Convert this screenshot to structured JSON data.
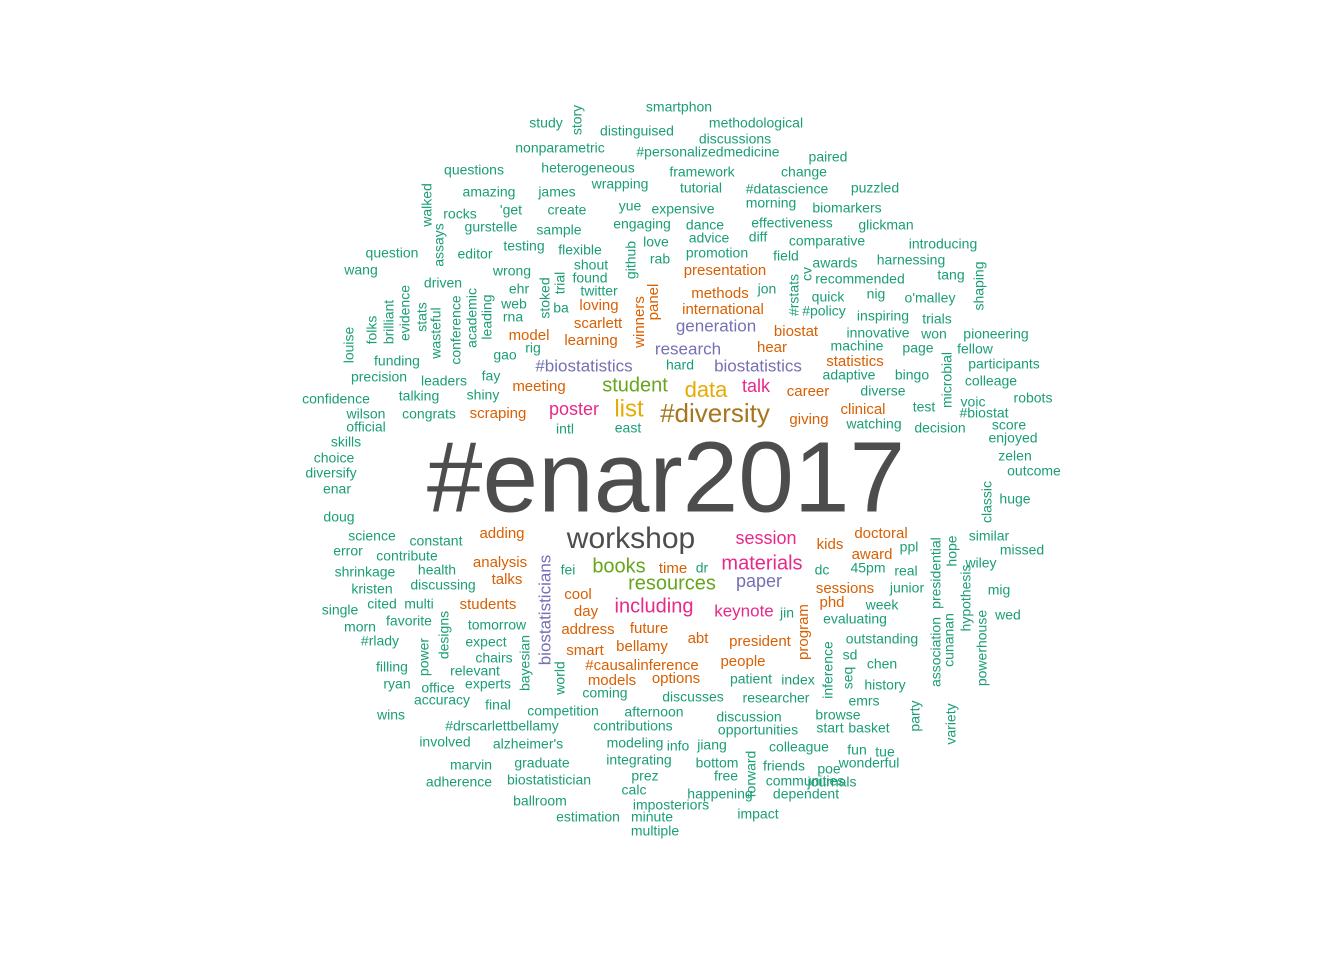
{
  "colors": {
    "gray": "#4d4d4d",
    "green": "#1b9e77",
    "orange": "#d95f02",
    "purple": "#7570b3",
    "pink": "#e7298a",
    "lime": "#66a61e",
    "gold": "#e6ab02",
    "brown": "#a6761d"
  },
  "words": [
    {
      "text": "#enar2017",
      "c": "gray"
    },
    {
      "text": "workshop",
      "c": "gray"
    },
    {
      "text": "#diversity",
      "c": "brown"
    },
    {
      "text": "list",
      "c": "gold"
    },
    {
      "text": "data",
      "c": "gold"
    },
    {
      "text": "student",
      "c": "lime"
    },
    {
      "text": "books",
      "c": "lime"
    },
    {
      "text": "resources",
      "c": "lime"
    },
    {
      "text": "materials",
      "c": "pink"
    },
    {
      "text": "session",
      "c": "pink"
    },
    {
      "text": "including",
      "c": "pink"
    },
    {
      "text": "talk",
      "c": "pink"
    },
    {
      "text": "poster",
      "c": "pink"
    },
    {
      "text": "keynote",
      "c": "pink"
    },
    {
      "text": "paper",
      "c": "purple"
    },
    {
      "text": "research",
      "c": "purple"
    },
    {
      "text": "#biostatistics",
      "c": "purple"
    },
    {
      "text": "biostatistics",
      "c": "purple"
    },
    {
      "text": "generation",
      "c": "purple"
    },
    {
      "text": "biostatisticians",
      "c": "purple"
    },
    {
      "text": "presentation",
      "c": "orange"
    },
    {
      "text": "methods",
      "c": "orange"
    },
    {
      "text": "international",
      "c": "orange"
    },
    {
      "text": "loving",
      "c": "orange"
    },
    {
      "text": "scarlett",
      "c": "orange"
    },
    {
      "text": "learning",
      "c": "orange"
    },
    {
      "text": "model",
      "c": "orange"
    },
    {
      "text": "meeting",
      "c": "orange"
    },
    {
      "text": "scraping",
      "c": "orange"
    },
    {
      "text": "hear",
      "c": "orange"
    },
    {
      "text": "biostat",
      "c": "orange"
    },
    {
      "text": "statistics",
      "c": "orange"
    },
    {
      "text": "career",
      "c": "orange"
    },
    {
      "text": "clinical",
      "c": "orange"
    },
    {
      "text": "giving",
      "c": "orange"
    },
    {
      "text": "winners",
      "c": "orange"
    },
    {
      "text": "panel",
      "c": "orange"
    },
    {
      "text": "adding",
      "c": "orange"
    },
    {
      "text": "analysis",
      "c": "orange"
    },
    {
      "text": "talks",
      "c": "orange"
    },
    {
      "text": "students",
      "c": "orange"
    },
    {
      "text": "cool",
      "c": "orange"
    },
    {
      "text": "day",
      "c": "orange"
    },
    {
      "text": "address",
      "c": "orange"
    },
    {
      "text": "future",
      "c": "orange"
    },
    {
      "text": "smart",
      "c": "orange"
    },
    {
      "text": "bellamy",
      "c": "orange"
    },
    {
      "text": "#causalinference",
      "c": "orange"
    },
    {
      "text": "models",
      "c": "orange"
    },
    {
      "text": "options",
      "c": "orange"
    },
    {
      "text": "time",
      "c": "orange"
    },
    {
      "text": "abt",
      "c": "orange"
    },
    {
      "text": "president",
      "c": "orange"
    },
    {
      "text": "people",
      "c": "orange"
    },
    {
      "text": "program",
      "c": "orange"
    },
    {
      "text": "doctoral",
      "c": "orange"
    },
    {
      "text": "award",
      "c": "orange"
    },
    {
      "text": "kids",
      "c": "orange"
    },
    {
      "text": "sessions",
      "c": "orange"
    },
    {
      "text": "phd",
      "c": "orange"
    },
    {
      "text": "smartphon",
      "c": "green"
    },
    {
      "text": "story",
      "c": "green"
    },
    {
      "text": "study",
      "c": "green"
    },
    {
      "text": "methodological",
      "c": "green"
    },
    {
      "text": "distinguised",
      "c": "green"
    },
    {
      "text": "discussions",
      "c": "green"
    },
    {
      "text": "nonparametric",
      "c": "green"
    },
    {
      "text": "#personalizedmedicine",
      "c": "green"
    },
    {
      "text": "paired",
      "c": "green"
    },
    {
      "text": "questions",
      "c": "green"
    },
    {
      "text": "heterogeneous",
      "c": "green"
    },
    {
      "text": "framework",
      "c": "green"
    },
    {
      "text": "change",
      "c": "green"
    },
    {
      "text": "amazing",
      "c": "green"
    },
    {
      "text": "james",
      "c": "green"
    },
    {
      "text": "wrapping",
      "c": "green"
    },
    {
      "text": "tutorial",
      "c": "green"
    },
    {
      "text": "#datascience",
      "c": "green"
    },
    {
      "text": "puzzled",
      "c": "green"
    },
    {
      "text": "walked",
      "c": "green"
    },
    {
      "text": "rocks",
      "c": "green"
    },
    {
      "text": "'get",
      "c": "green"
    },
    {
      "text": "create",
      "c": "green"
    },
    {
      "text": "yue",
      "c": "green"
    },
    {
      "text": "expensive",
      "c": "green"
    },
    {
      "text": "morning",
      "c": "green"
    },
    {
      "text": "biomarkers",
      "c": "green"
    },
    {
      "text": "gurstelle",
      "c": "green"
    },
    {
      "text": "sample",
      "c": "green"
    },
    {
      "text": "engaging",
      "c": "green"
    },
    {
      "text": "dance",
      "c": "green"
    },
    {
      "text": "effectiveness",
      "c": "green"
    },
    {
      "text": "glickman",
      "c": "green"
    },
    {
      "text": "assays",
      "c": "green"
    },
    {
      "text": "question",
      "c": "green"
    },
    {
      "text": "editor",
      "c": "green"
    },
    {
      "text": "testing",
      "c": "green"
    },
    {
      "text": "flexible",
      "c": "green"
    },
    {
      "text": "love",
      "c": "green"
    },
    {
      "text": "advice",
      "c": "green"
    },
    {
      "text": "diff",
      "c": "green"
    },
    {
      "text": "comparative",
      "c": "green"
    },
    {
      "text": "introducing",
      "c": "green"
    },
    {
      "text": "wang",
      "c": "green"
    },
    {
      "text": "github",
      "c": "green"
    },
    {
      "text": "promotion",
      "c": "green"
    },
    {
      "text": "rab",
      "c": "green"
    },
    {
      "text": "field",
      "c": "green"
    },
    {
      "text": "awards",
      "c": "green"
    },
    {
      "text": "harnessing",
      "c": "green"
    },
    {
      "text": "tang",
      "c": "green"
    },
    {
      "text": "shout",
      "c": "green"
    },
    {
      "text": "wrong",
      "c": "green"
    },
    {
      "text": "driven",
      "c": "green"
    },
    {
      "text": "found",
      "c": "green"
    },
    {
      "text": "cv",
      "c": "green"
    },
    {
      "text": "recommended",
      "c": "green"
    },
    {
      "text": "shaping",
      "c": "green"
    },
    {
      "text": "evidence",
      "c": "green"
    },
    {
      "text": "ehr",
      "c": "green"
    },
    {
      "text": "trial",
      "c": "green"
    },
    {
      "text": "twitter",
      "c": "green"
    },
    {
      "text": "jon",
      "c": "green"
    },
    {
      "text": "#rstats",
      "c": "green"
    },
    {
      "text": "quick",
      "c": "green"
    },
    {
      "text": "nig",
      "c": "green"
    },
    {
      "text": "o'malley",
      "c": "green"
    },
    {
      "text": "brilliant",
      "c": "green"
    },
    {
      "text": "academic",
      "c": "green"
    },
    {
      "text": "web",
      "c": "green"
    },
    {
      "text": "stoked",
      "c": "green"
    },
    {
      "text": "ba",
      "c": "green"
    },
    {
      "text": "#policy",
      "c": "green"
    },
    {
      "text": "inspiring",
      "c": "green"
    },
    {
      "text": "trials",
      "c": "green"
    },
    {
      "text": "stats",
      "c": "green"
    },
    {
      "text": "wasteful",
      "c": "green"
    },
    {
      "text": "leading",
      "c": "green"
    },
    {
      "text": "rna",
      "c": "green"
    },
    {
      "text": "innovative",
      "c": "green"
    },
    {
      "text": "won",
      "c": "green"
    },
    {
      "text": "pioneering",
      "c": "green"
    },
    {
      "text": "folks",
      "c": "green"
    },
    {
      "text": "conference",
      "c": "green"
    },
    {
      "text": "louise",
      "c": "green"
    },
    {
      "text": "rig",
      "c": "green"
    },
    {
      "text": "machine",
      "c": "green"
    },
    {
      "text": "page",
      "c": "green"
    },
    {
      "text": "fellow",
      "c": "green"
    },
    {
      "text": "funding",
      "c": "green"
    },
    {
      "text": "gao",
      "c": "green"
    },
    {
      "text": "hard",
      "c": "green"
    },
    {
      "text": "participants",
      "c": "green"
    },
    {
      "text": "precision",
      "c": "green"
    },
    {
      "text": "leaders",
      "c": "green"
    },
    {
      "text": "fay",
      "c": "green"
    },
    {
      "text": "adaptive",
      "c": "green"
    },
    {
      "text": "bingo",
      "c": "green"
    },
    {
      "text": "colleage",
      "c": "green"
    },
    {
      "text": "microbial",
      "c": "green"
    },
    {
      "text": "talking",
      "c": "green"
    },
    {
      "text": "shiny",
      "c": "green"
    },
    {
      "text": "diverse",
      "c": "green"
    },
    {
      "text": "robots",
      "c": "green"
    },
    {
      "text": "confidence",
      "c": "green"
    },
    {
      "text": "test",
      "c": "green"
    },
    {
      "text": "voic",
      "c": "green"
    },
    {
      "text": "wilson",
      "c": "green"
    },
    {
      "text": "congrats",
      "c": "green"
    },
    {
      "text": "#biostat",
      "c": "green"
    },
    {
      "text": "official",
      "c": "green"
    },
    {
      "text": "intl",
      "c": "green"
    },
    {
      "text": "east",
      "c": "green"
    },
    {
      "text": "watching",
      "c": "green"
    },
    {
      "text": "decision",
      "c": "green"
    },
    {
      "text": "score",
      "c": "green"
    },
    {
      "text": "skills",
      "c": "green"
    },
    {
      "text": "enjoyed",
      "c": "green"
    },
    {
      "text": "choice",
      "c": "green"
    },
    {
      "text": "zelen",
      "c": "green"
    },
    {
      "text": "diversify",
      "c": "green"
    },
    {
      "text": "outcome",
      "c": "green"
    },
    {
      "text": "enar",
      "c": "green"
    },
    {
      "text": "classic",
      "c": "green"
    },
    {
      "text": "huge",
      "c": "green"
    },
    {
      "text": "doug",
      "c": "green"
    },
    {
      "text": "science",
      "c": "green"
    },
    {
      "text": "constant",
      "c": "green"
    },
    {
      "text": "similar",
      "c": "green"
    },
    {
      "text": "presidential",
      "c": "green"
    },
    {
      "text": "error",
      "c": "green"
    },
    {
      "text": "contribute",
      "c": "green"
    },
    {
      "text": "ppl",
      "c": "green"
    },
    {
      "text": "hope",
      "c": "green"
    },
    {
      "text": "missed",
      "c": "green"
    },
    {
      "text": "shrinkage",
      "c": "green"
    },
    {
      "text": "health",
      "c": "green"
    },
    {
      "text": "fei",
      "c": "green"
    },
    {
      "text": "dr",
      "c": "green"
    },
    {
      "text": "dc",
      "c": "green"
    },
    {
      "text": "45pm",
      "c": "green"
    },
    {
      "text": "real",
      "c": "green"
    },
    {
      "text": "wiley",
      "c": "green"
    },
    {
      "text": "kristen",
      "c": "green"
    },
    {
      "text": "discussing",
      "c": "green"
    },
    {
      "text": "junior",
      "c": "green"
    },
    {
      "text": "mig",
      "c": "green"
    },
    {
      "text": "hypothesis",
      "c": "green"
    },
    {
      "text": "single",
      "c": "green"
    },
    {
      "text": "cited",
      "c": "green"
    },
    {
      "text": "multi",
      "c": "green"
    },
    {
      "text": "week",
      "c": "green"
    },
    {
      "text": "favorite",
      "c": "green"
    },
    {
      "text": "jin",
      "c": "green"
    },
    {
      "text": "evaluating",
      "c": "green"
    },
    {
      "text": "wed",
      "c": "green"
    },
    {
      "text": "powerhouse",
      "c": "green"
    },
    {
      "text": "morn",
      "c": "green"
    },
    {
      "text": "tomorrow",
      "c": "green"
    },
    {
      "text": "cunanan",
      "c": "green"
    },
    {
      "text": "#rlady",
      "c": "green"
    },
    {
      "text": "power",
      "c": "green"
    },
    {
      "text": "designs",
      "c": "green"
    },
    {
      "text": "expect",
      "c": "green"
    },
    {
      "text": "outstanding",
      "c": "green"
    },
    {
      "text": "association",
      "c": "green"
    },
    {
      "text": "bayesian",
      "c": "green"
    },
    {
      "text": "chairs",
      "c": "green"
    },
    {
      "text": "sd",
      "c": "green"
    },
    {
      "text": "filling",
      "c": "green"
    },
    {
      "text": "relevant",
      "c": "green"
    },
    {
      "text": "inference",
      "c": "green"
    },
    {
      "text": "chen",
      "c": "green"
    },
    {
      "text": "seq",
      "c": "green"
    },
    {
      "text": "ryan",
      "c": "green"
    },
    {
      "text": "office",
      "c": "green"
    },
    {
      "text": "experts",
      "c": "green"
    },
    {
      "text": "world",
      "c": "green"
    },
    {
      "text": "patient",
      "c": "green"
    },
    {
      "text": "index",
      "c": "green"
    },
    {
      "text": "history",
      "c": "green"
    },
    {
      "text": "accuracy",
      "c": "green"
    },
    {
      "text": "coming",
      "c": "green"
    },
    {
      "text": "discusses",
      "c": "green"
    },
    {
      "text": "researcher",
      "c": "green"
    },
    {
      "text": "party",
      "c": "green"
    },
    {
      "text": "emrs",
      "c": "green"
    },
    {
      "text": "wins",
      "c": "green"
    },
    {
      "text": "final",
      "c": "green"
    },
    {
      "text": "competition",
      "c": "green"
    },
    {
      "text": "afternoon",
      "c": "green"
    },
    {
      "text": "discussion",
      "c": "green"
    },
    {
      "text": "browse",
      "c": "green"
    },
    {
      "text": "variety",
      "c": "green"
    },
    {
      "text": "#drscarlettbellamy",
      "c": "green"
    },
    {
      "text": "contributions",
      "c": "green"
    },
    {
      "text": "opportunities",
      "c": "green"
    },
    {
      "text": "start",
      "c": "green"
    },
    {
      "text": "basket",
      "c": "green"
    },
    {
      "text": "involved",
      "c": "green"
    },
    {
      "text": "alzheimer's",
      "c": "green"
    },
    {
      "text": "modeling",
      "c": "green"
    },
    {
      "text": "info",
      "c": "green"
    },
    {
      "text": "jiang",
      "c": "green"
    },
    {
      "text": "colleague",
      "c": "green"
    },
    {
      "text": "fun",
      "c": "green"
    },
    {
      "text": "tue",
      "c": "green"
    },
    {
      "text": "forward",
      "c": "green"
    },
    {
      "text": "marvin",
      "c": "green"
    },
    {
      "text": "graduate",
      "c": "green"
    },
    {
      "text": "integrating",
      "c": "green"
    },
    {
      "text": "bottom",
      "c": "green"
    },
    {
      "text": "friends",
      "c": "green"
    },
    {
      "text": "poe",
      "c": "green"
    },
    {
      "text": "wonderful",
      "c": "green"
    },
    {
      "text": "adherence",
      "c": "green"
    },
    {
      "text": "biostatistician",
      "c": "green"
    },
    {
      "text": "prez",
      "c": "green"
    },
    {
      "text": "free",
      "c": "green"
    },
    {
      "text": "communities",
      "c": "green"
    },
    {
      "text": "journals",
      "c": "green"
    },
    {
      "text": "calc",
      "c": "green"
    },
    {
      "text": "happening",
      "c": "green"
    },
    {
      "text": "dependent",
      "c": "green"
    },
    {
      "text": "ballroom",
      "c": "green"
    },
    {
      "text": "imposteriors",
      "c": "green"
    },
    {
      "text": "impact",
      "c": "green"
    },
    {
      "text": "estimation",
      "c": "green"
    },
    {
      "text": "minute",
      "c": "green"
    },
    {
      "text": "multiple",
      "c": "green"
    }
  ]
}
